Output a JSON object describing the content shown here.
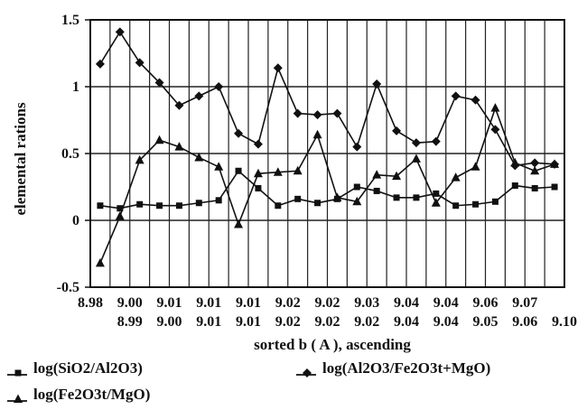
{
  "chart_data": {
    "type": "line",
    "title": "",
    "xlabel": "sorted b ( A ), ascending",
    "ylabel": "elemental rations",
    "ylim": [
      -0.5,
      1.5
    ],
    "yticks": [
      "1.5",
      "1",
      "0.5",
      "0",
      "-0.5"
    ],
    "ytick_values": [
      1.5,
      1,
      0.5,
      0,
      -0.5
    ],
    "grid": true,
    "legend_position": "bottom",
    "x": [
      "8.98",
      "8.99",
      "9.00",
      "9.00",
      "9.01",
      "9.01",
      "9.01",
      "9.01",
      "9.01",
      "9.02",
      "9.02",
      "9.02",
      "9.02",
      "9.02",
      "9.03",
      "9.04",
      "9.04",
      "9.04",
      "9.04",
      "9.05",
      "9.06",
      "9.06",
      "9.07",
      "9.10"
    ],
    "series": [
      {
        "name": "log(SiO2/Al2O3)",
        "marker": "square",
        "values": [
          0.11,
          0.09,
          0.12,
          0.11,
          0.11,
          0.13,
          0.15,
          0.37,
          0.24,
          0.11,
          0.16,
          0.13,
          0.16,
          0.25,
          0.22,
          0.17,
          0.17,
          0.2,
          0.11,
          0.12,
          0.14,
          0.26,
          0.24,
          0.25
        ]
      },
      {
        "name": "log(Al2O3/Fe2O3t+MgO)",
        "marker": "diamond",
        "values": [
          1.17,
          1.41,
          1.18,
          1.03,
          0.86,
          0.93,
          1.0,
          0.65,
          0.57,
          1.14,
          0.8,
          0.79,
          0.8,
          0.55,
          1.02,
          0.67,
          0.58,
          0.59,
          0.93,
          0.9,
          0.68,
          0.41,
          0.43,
          0.42
        ]
      },
      {
        "name": "log(Fe2O3t/MgO)",
        "marker": "triangle",
        "values": [
          -0.32,
          0.03,
          0.45,
          0.6,
          0.55,
          0.47,
          0.4,
          -0.03,
          0.35,
          0.36,
          0.37,
          0.64,
          0.17,
          0.14,
          0.34,
          0.33,
          0.46,
          0.13,
          0.32,
          0.4,
          0.84,
          0.43,
          0.37,
          0.42
        ]
      }
    ]
  }
}
